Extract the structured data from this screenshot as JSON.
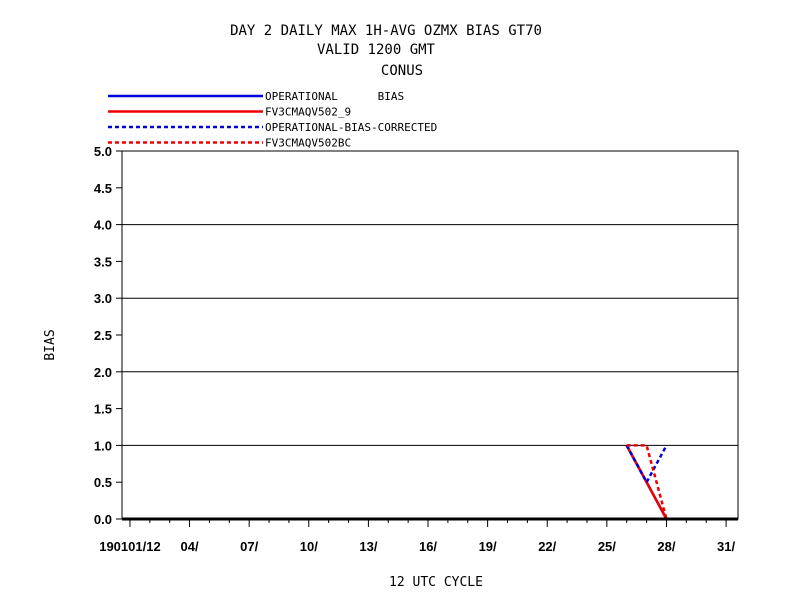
{
  "chart_data": {
    "type": "line",
    "title_lines": [
      "DAY 2 DAILY MAX   1H-AVG OZMX BIAS GT70",
      "VALID 1200 GMT",
      "CONUS"
    ],
    "xlabel": "12 UTC CYCLE",
    "ylabel": "BIAS",
    "xlim": [
      0.6,
      31.6
    ],
    "ylim": [
      0,
      5.0
    ],
    "x_tick_values": [
      1,
      4,
      7,
      10,
      13,
      16,
      19,
      22,
      25,
      28,
      31
    ],
    "x_tick_labels": [
      "190101/12",
      "04/",
      "07/",
      "10/",
      "13/",
      "16/",
      "19/",
      "22/",
      "25/",
      "28/",
      "31/"
    ],
    "y_tick_values": [
      0,
      0.5,
      1.0,
      1.5,
      2.0,
      2.5,
      3.0,
      3.5,
      4.0,
      4.5,
      5.0
    ],
    "y_tick_labels": [
      "0.0",
      "0.5",
      "1.0",
      "1.5",
      "2.0",
      "2.5",
      "3.0",
      "3.5",
      "4.0",
      "4.5",
      "5.0"
    ],
    "y_gridlines": [
      1.0,
      2.0,
      3.0,
      4.0
    ],
    "reference_line": 0.0,
    "legend_position": "top-left",
    "series": [
      {
        "name": "OPERATIONAL      BIAS",
        "color": "#0000dd",
        "dash": "solid",
        "x": [
          26,
          27,
          28
        ],
        "y": [
          1.0,
          0.5,
          0.0
        ]
      },
      {
        "name": "FV3CMAQV502_9",
        "color": "#ee0000",
        "dash": "solid",
        "x": [
          26,
          27,
          28
        ],
        "y": [
          1.0,
          0.5,
          0.0
        ]
      },
      {
        "name": "OPERATIONAL-BIAS-CORRECTED",
        "color": "#0000dd",
        "dash": "dashed",
        "x": [
          26,
          27,
          28
        ],
        "y": [
          1.0,
          0.5,
          1.0
        ]
      },
      {
        "name": "FV3CMAQV502BC",
        "color": "#ee0000",
        "dash": "dashed",
        "x": [
          26,
          27,
          28
        ],
        "y": [
          1.0,
          1.0,
          0.0
        ]
      }
    ]
  }
}
